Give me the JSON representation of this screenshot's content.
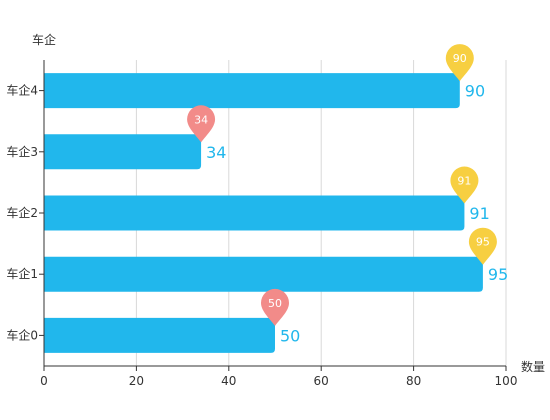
{
  "chart_data": {
    "type": "bar",
    "orientation": "horizontal",
    "title": "",
    "ylabel": "车企",
    "xlabel": "数量",
    "categories": [
      "车企0",
      "车企1",
      "车企2",
      "车企3",
      "车企4"
    ],
    "values": [
      50,
      95,
      91,
      34,
      90
    ],
    "xlim": [
      0,
      100
    ],
    "xticks": [
      0,
      20,
      40,
      60,
      80,
      100
    ],
    "grid": "vertical",
    "bar_color": "#21b7ec",
    "value_label_color": "#21b7ec",
    "marker_colors": {
      "high": "#f7cf41",
      "low": "#f28b89"
    },
    "marker_threshold": 80
  }
}
